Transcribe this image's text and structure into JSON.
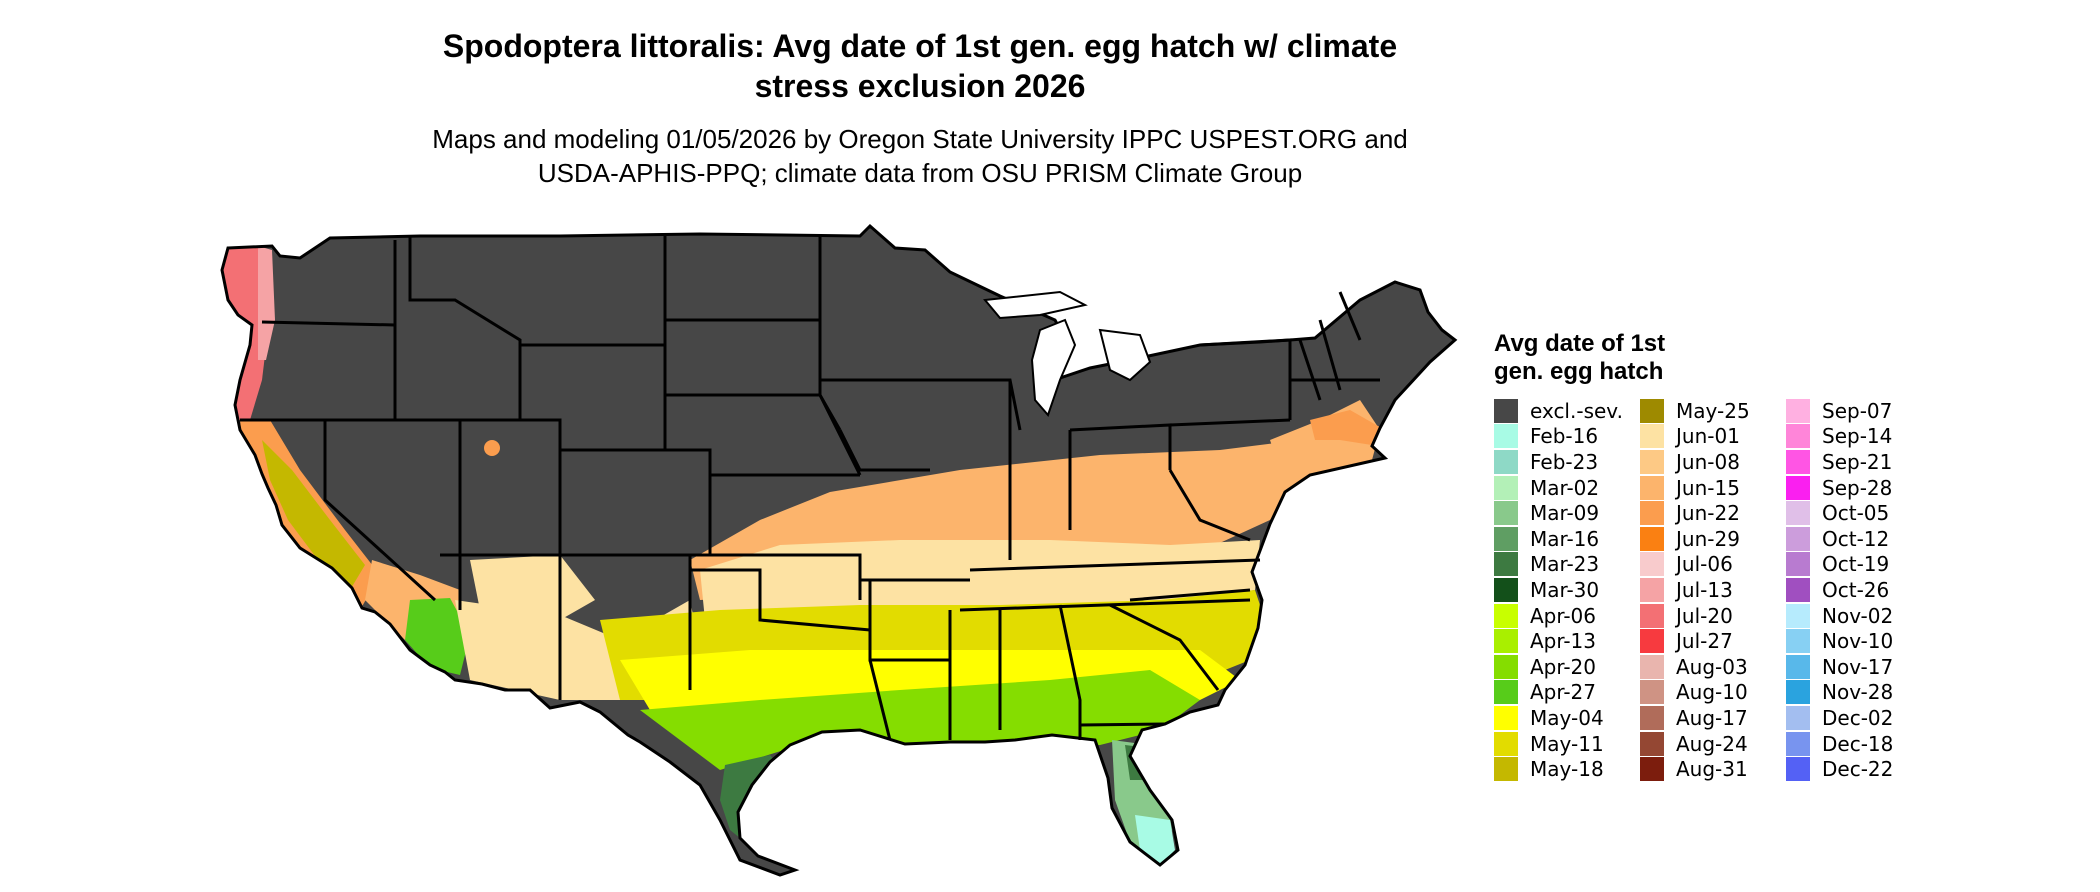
{
  "title": {
    "line1": "Spodoptera littoralis: Avg date of 1st gen. egg hatch w/ climate",
    "line2": "stress exclusion 2026"
  },
  "subtitle": {
    "line1": "Maps and modeling 01/05/2026 by Oregon State University IPPC USPEST.ORG and",
    "line2": "USDA-APHIS-PPQ; climate data from OSU PRISM Climate Group"
  },
  "map": {
    "region": "Contiguous United States",
    "colors": {
      "excluded": "#474747",
      "border": "#000000"
    }
  },
  "legend": {
    "title_line1": "Avg date of 1st",
    "title_line2": "gen. egg hatch",
    "columns": [
      [
        {
          "label": "excl.-sev.",
          "color": "#474747"
        },
        {
          "label": "Feb-16",
          "color": "#a8fbe5"
        },
        {
          "label": "Feb-23",
          "color": "#8ed9c6"
        },
        {
          "label": "Mar-02",
          "color": "#b3f0b7"
        },
        {
          "label": "Mar-09",
          "color": "#89c98b"
        },
        {
          "label": "Mar-16",
          "color": "#5f9e63"
        },
        {
          "label": "Mar-23",
          "color": "#3d7a41"
        },
        {
          "label": "Mar-30",
          "color": "#13501a"
        },
        {
          "label": "Apr-06",
          "color": "#c8ff00"
        },
        {
          "label": "Apr-13",
          "color": "#a9ef00"
        },
        {
          "label": "Apr-20",
          "color": "#85dd00"
        },
        {
          "label": "Apr-27",
          "color": "#57cc1a"
        },
        {
          "label": "May-04",
          "color": "#ffff00"
        },
        {
          "label": "May-11",
          "color": "#e2dc00"
        },
        {
          "label": "May-18",
          "color": "#c4b800"
        }
      ],
      [
        {
          "label": "May-25",
          "color": "#9e8a00"
        },
        {
          "label": "Jun-01",
          "color": "#fde2a3"
        },
        {
          "label": "Jun-08",
          "color": "#fdc985"
        },
        {
          "label": "Jun-15",
          "color": "#fcb46c"
        },
        {
          "label": "Jun-22",
          "color": "#fb9d4e"
        },
        {
          "label": "Jun-29",
          "color": "#fa8012"
        },
        {
          "label": "Jul-06",
          "color": "#f8cbcc"
        },
        {
          "label": "Jul-13",
          "color": "#f5a3a5"
        },
        {
          "label": "Jul-20",
          "color": "#f37074"
        },
        {
          "label": "Jul-27",
          "color": "#f73a3f"
        },
        {
          "label": "Aug-03",
          "color": "#e9b5ae"
        },
        {
          "label": "Aug-10",
          "color": "#cf9384"
        },
        {
          "label": "Aug-17",
          "color": "#b06c5a"
        },
        {
          "label": "Aug-24",
          "color": "#944733"
        },
        {
          "label": "Aug-31",
          "color": "#7c1d0d"
        }
      ],
      [
        {
          "label": "Sep-07",
          "color": "#ffb0e1"
        },
        {
          "label": "Sep-14",
          "color": "#ff85d9"
        },
        {
          "label": "Sep-21",
          "color": "#ff55e4"
        },
        {
          "label": "Sep-28",
          "color": "#fa1ff0"
        },
        {
          "label": "Oct-05",
          "color": "#e0bfe8"
        },
        {
          "label": "Oct-12",
          "color": "#cc9ddc"
        },
        {
          "label": "Oct-19",
          "color": "#b87bd0"
        },
        {
          "label": "Oct-26",
          "color": "#a04fc0"
        },
        {
          "label": "Nov-02",
          "color": "#b6ebfd"
        },
        {
          "label": "Nov-10",
          "color": "#87d0f3"
        },
        {
          "label": "Nov-17",
          "color": "#58b8ea"
        },
        {
          "label": "Nov-28",
          "color": "#2aa3df"
        },
        {
          "label": "Dec-02",
          "color": "#a3bef0"
        },
        {
          "label": "Dec-18",
          "color": "#7894ef"
        },
        {
          "label": "Dec-22",
          "color": "#5461f5"
        }
      ]
    ]
  }
}
